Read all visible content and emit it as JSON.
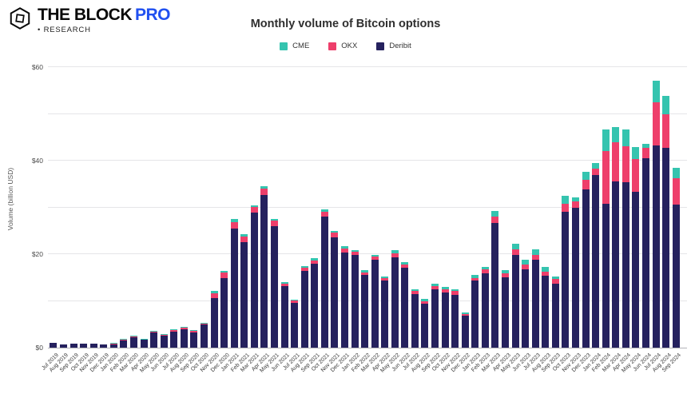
{
  "logo": {
    "brand_main": "THE BLOCK",
    "brand_pro": "PRO",
    "research_line": "• RESEARCH"
  },
  "chart_data": {
    "type": "bar",
    "stacked": true,
    "title": "Monthly volume of Bitcoin options",
    "ylabel": "Volume (billion USD)",
    "ylim": [
      0,
      60
    ],
    "grid": "horizontal",
    "legend_position": "top-center",
    "y_axis": {
      "ticks": [
        {
          "value": 0,
          "label": "$0"
        },
        {
          "value": 10,
          "label": ""
        },
        {
          "value": 20,
          "label": "$20"
        },
        {
          "value": 30,
          "label": ""
        },
        {
          "value": 40,
          "label": "$40"
        },
        {
          "value": 50,
          "label": ""
        },
        {
          "value": 60,
          "label": "$60"
        }
      ]
    },
    "categories": [
      "Jul 2019",
      "Aug 2019",
      "Sep 2019",
      "Oct 2019",
      "Nov 2019",
      "Dec 2019",
      "Jan 2020",
      "Feb 2020",
      "Mar 2020",
      "Apr 2020",
      "May 2020",
      "Jun 2020",
      "Jul 2020",
      "Aug 2020",
      "Sep 2020",
      "Oct 2020",
      "Nov 2020",
      "Dec 2020",
      "Jan 2021",
      "Feb 2021",
      "Mar 2021",
      "Apr 2021",
      "May 2021",
      "Jun 2021",
      "Jul 2021",
      "Aug 2021",
      "Sep 2021",
      "Oct 2021",
      "Nov 2021",
      "Dec 2021",
      "Jan 2022",
      "Feb 2022",
      "Mar 2022",
      "Apr 2022",
      "May 2022",
      "Jun 2022",
      "Jul 2022",
      "Aug 2022",
      "Sep 2022",
      "Oct 2022",
      "Nov 2022",
      "Dec 2022",
      "Jan 2023",
      "Feb 2023",
      "Mar 2023",
      "Apr 2023",
      "May 2023",
      "Jun 2023",
      "Jul 2023",
      "Aug 2023",
      "Sep 2023",
      "Oct 2023",
      "Nov 2023",
      "Dec 2023",
      "Jan 2024",
      "Feb 2024",
      "Mar 2024",
      "Apr 2024",
      "May 2024",
      "Jun 2024",
      "Jul 2024",
      "Aug 2024",
      "Sep 2024"
    ],
    "series": [
      {
        "name": "CME",
        "color": "#35c4af",
        "values": [
          0,
          0,
          0,
          0,
          0,
          0,
          0.05,
          0.05,
          0.05,
          0.05,
          0.15,
          0.1,
          0.15,
          0.15,
          0.15,
          0.15,
          0.45,
          0.35,
          0.6,
          0.4,
          0.45,
          0.55,
          0.35,
          0.25,
          0.2,
          0.3,
          0.4,
          0.5,
          0.45,
          0.5,
          0.45,
          0.45,
          0.45,
          0.35,
          0.6,
          0.45,
          0.4,
          0.4,
          0.45,
          0.45,
          0.4,
          0.3,
          0.65,
          0.6,
          1.3,
          0.75,
          1.25,
          0.95,
          1.15,
          0.9,
          0.65,
          1.7,
          0.85,
          1.7,
          1.25,
          4.7,
          3.3,
          3.7,
          2.45,
          0.85,
          4.7,
          4.0,
          2.2
        ]
      },
      {
        "name": "OKX",
        "color": "#ee3f6b",
        "values": [
          0,
          0,
          0,
          0,
          0,
          0,
          0.05,
          0.15,
          0.25,
          0.15,
          0.25,
          0.2,
          0.25,
          0.3,
          0.25,
          0.3,
          1.05,
          1.15,
          1.35,
          1.2,
          1.15,
          1.3,
          1.2,
          0.65,
          0.5,
          0.75,
          0.8,
          1.0,
          0.9,
          0.8,
          0.55,
          0.6,
          0.7,
          0.6,
          0.8,
          0.7,
          0.65,
          0.6,
          0.7,
          0.7,
          0.8,
          0.35,
          0.5,
          0.8,
          1.25,
          0.85,
          1.15,
          1.05,
          1.1,
          0.95,
          1.0,
          1.7,
          1.4,
          2.0,
          1.4,
          11.2,
          8.3,
          7.6,
          7.1,
          2.3,
          9.1,
          7.2,
          5.6
        ]
      },
      {
        "name": "Deribit",
        "color": "#25215e",
        "values": [
          1.0,
          0.7,
          0.85,
          0.8,
          0.85,
          0.75,
          0.85,
          1.6,
          2.3,
          1.7,
          3.2,
          2.55,
          3.5,
          3.95,
          3.3,
          4.9,
          10.6,
          14.9,
          25.55,
          22.6,
          28.9,
          32.65,
          25.95,
          13.1,
          9.6,
          16.35,
          17.9,
          28.1,
          23.65,
          20.4,
          19.9,
          15.55,
          18.75,
          14.35,
          19.4,
          17.15,
          11.45,
          9.4,
          12.55,
          11.85,
          11.3,
          6.85,
          14.35,
          15.9,
          26.75,
          15.0,
          19.8,
          16.8,
          18.75,
          15.35,
          13.65,
          29.1,
          29.95,
          33.9,
          36.85,
          30.8,
          35.6,
          35.4,
          33.3,
          40.45,
          43.3,
          42.7,
          30.6
        ]
      }
    ]
  }
}
